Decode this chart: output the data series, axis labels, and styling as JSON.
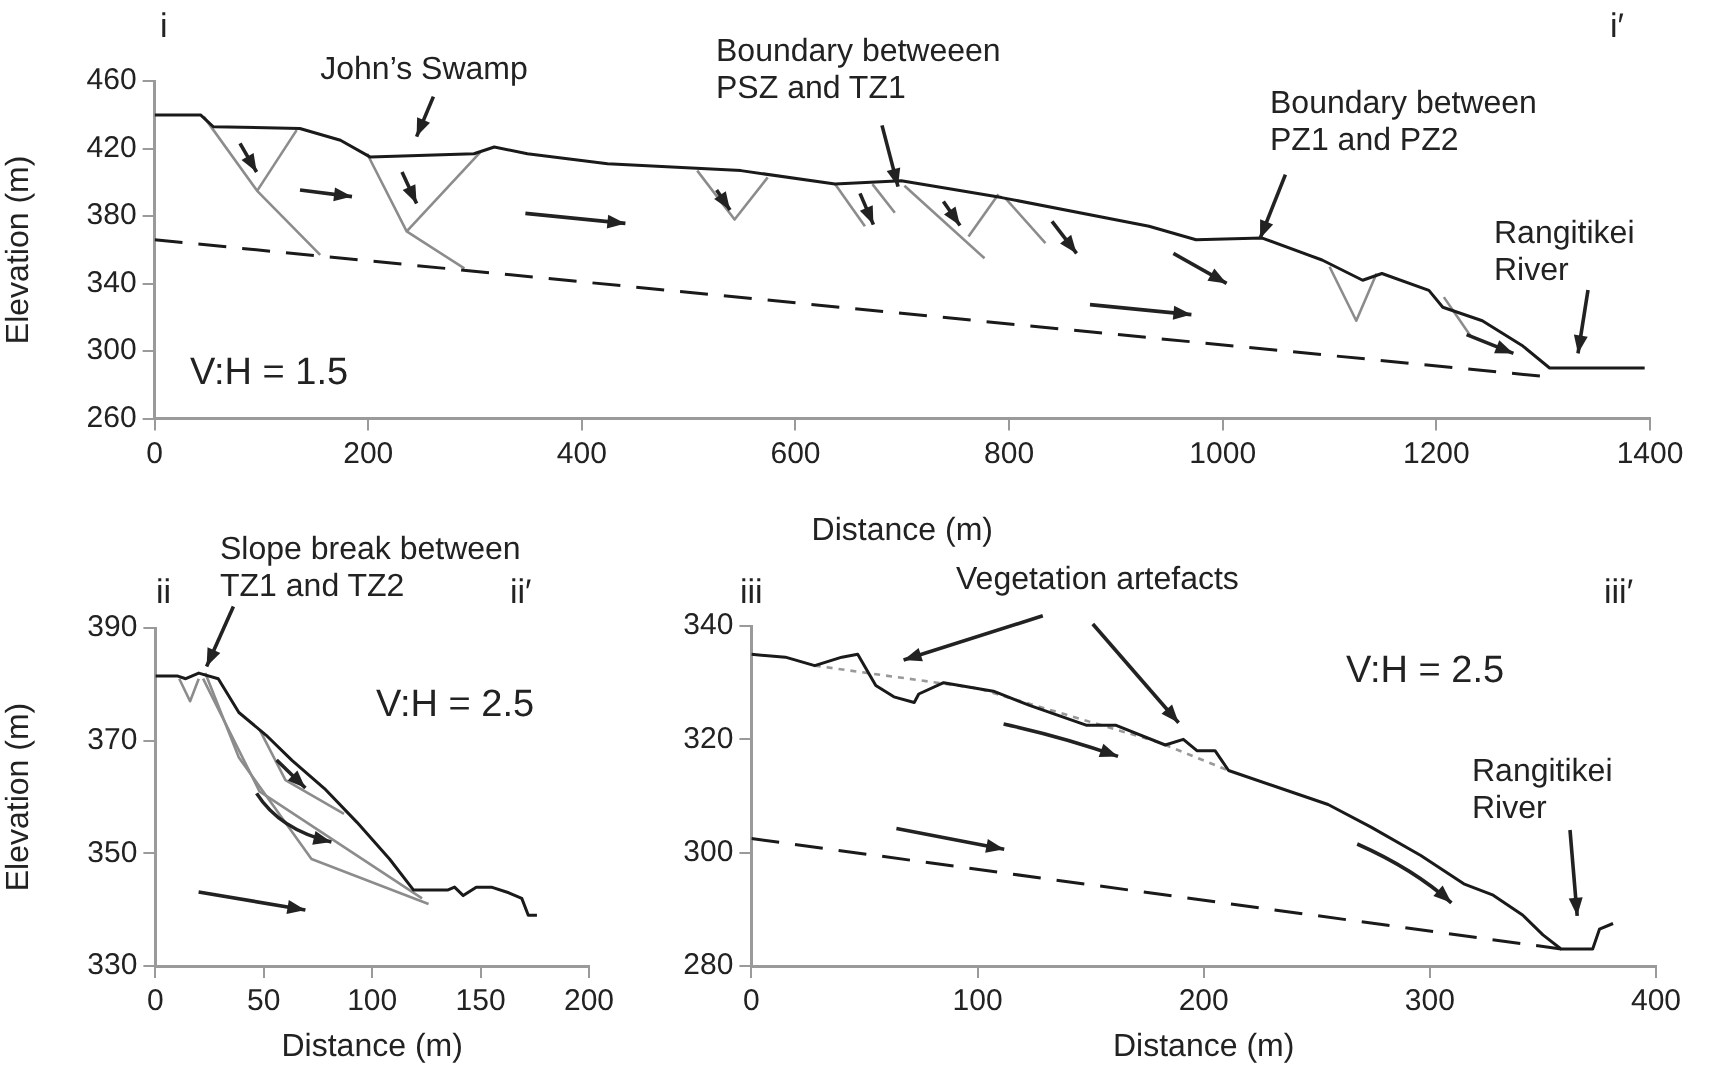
{
  "chart_data": [
    {
      "type": "line",
      "xlabel": "Distance (m)",
      "ylabel": "Elevation (m)",
      "xlim": [
        0,
        1400
      ],
      "ylim": [
        260,
        460
      ],
      "xticks": [
        0,
        200,
        400,
        600,
        800,
        1000,
        1200,
        1400
      ],
      "yticks": [
        260,
        300,
        340,
        380,
        420,
        460
      ],
      "annotations": [
        "John’s Swamp",
        "Boundary betweeen PSZ and TZ1",
        "Boundary between PZ1 and PZ2",
        "Rangitikei River",
        "i",
        "i′",
        "V:H = 1.5"
      ],
      "series": [
        {
          "color": "#1a1a1a",
          "line_style": "solid",
          "x": [
            0,
            43,
            55,
            136,
            174,
            202,
            299,
            318,
            349,
            424,
            549,
            637,
            699,
            737,
            793,
            931,
            975,
            1037,
            1093,
            1131,
            1149,
            1193,
            1206,
            1243,
            1281,
            1306,
            1362,
            1395
          ],
          "values": [
            440,
            440,
            433,
            432,
            425,
            415,
            417,
            421,
            417,
            411,
            407,
            399,
            401,
            397,
            391,
            374,
            366,
            367,
            354,
            342,
            346,
            336,
            326,
            318,
            303,
            290,
            290,
            290
          ]
        },
        {
          "color": "#1a1a1a",
          "line_style": "dashed",
          "x": [
            0,
            1300
          ],
          "values": [
            366,
            285
          ]
        },
        {
          "color": "#8c8c8c",
          "line_style": "solid",
          "x": [
            46,
            96,
            155
          ],
          "values": [
            439,
            395,
            357
          ]
        },
        {
          "color": "#8c8c8c",
          "line_style": "solid",
          "x": [
            96,
            133
          ],
          "values": [
            395,
            431
          ]
        },
        {
          "color": "#8c8c8c",
          "line_style": "solid",
          "x": [
            199,
            236,
            290
          ],
          "values": [
            417,
            371,
            349
          ]
        },
        {
          "color": "#8c8c8c",
          "line_style": "solid",
          "x": [
            236,
            305
          ],
          "values": [
            371,
            418
          ]
        },
        {
          "color": "#8c8c8c",
          "line_style": "solid",
          "x": [
            508,
            543,
            574
          ],
          "values": [
            407,
            378,
            403
          ]
        },
        {
          "color": "#8c8c8c",
          "line_style": "solid",
          "x": [
            637,
            665
          ],
          "values": [
            399,
            374
          ]
        },
        {
          "color": "#8c8c8c",
          "line_style": "solid",
          "x": [
            672,
            693
          ],
          "values": [
            399,
            382
          ]
        },
        {
          "color": "#8c8c8c",
          "line_style": "solid",
          "x": [
            702,
            777
          ],
          "values": [
            398,
            355
          ]
        },
        {
          "color": "#8c8c8c",
          "line_style": "solid",
          "x": [
            762,
            790
          ],
          "values": [
            368,
            393
          ]
        },
        {
          "color": "#8c8c8c",
          "line_style": "solid",
          "x": [
            796,
            834
          ],
          "values": [
            391,
            364
          ]
        },
        {
          "color": "#8c8c8c",
          "line_style": "solid",
          "x": [
            1100,
            1125,
            1144
          ],
          "values": [
            350,
            318,
            346
          ]
        },
        {
          "color": "#8c8c8c",
          "line_style": "solid",
          "x": [
            1207,
            1232
          ],
          "values": [
            332,
            309
          ]
        }
      ]
    },
    {
      "type": "line",
      "xlabel": "Distance (m)",
      "ylabel": "Elevation (m)",
      "xlim": [
        0,
        200
      ],
      "ylim": [
        330,
        390
      ],
      "xticks": [
        0,
        50,
        100,
        150,
        200
      ],
      "yticks": [
        330,
        350,
        370,
        390
      ],
      "annotations": [
        "Slope break between TZ1 and TZ2",
        "ii",
        "ii′",
        "V:H = 2.5"
      ],
      "series": [
        {
          "color": "#1a1a1a",
          "line_style": "solid",
          "x": [
            0,
            10,
            14,
            20,
            29,
            38.5,
            51,
            63,
            78,
            93,
            108,
            119,
            135,
            138,
            142,
            148,
            155,
            163,
            169,
            172,
            176
          ],
          "values": [
            381.5,
            381.5,
            381,
            382,
            381,
            375,
            371,
            366.5,
            361.5,
            355.5,
            349,
            343.5,
            343.5,
            344,
            342.5,
            344,
            344,
            343,
            342,
            339,
            339
          ]
        },
        {
          "color": "#8c8c8c",
          "line_style": "solid",
          "x": [
            23,
            38.5,
            72,
            126
          ],
          "values": [
            382,
            367,
            349,
            341
          ]
        },
        {
          "color": "#8c8c8c",
          "line_style": "solid",
          "x": [
            22,
            48,
            123
          ],
          "values": [
            381,
            361,
            342
          ]
        },
        {
          "color": "#8c8c8c",
          "line_style": "solid",
          "x": [
            48,
            60,
            87
          ],
          "values": [
            372,
            363,
            357
          ]
        },
        {
          "color": "#8c8c8c",
          "line_style": "solid",
          "x": [
            11,
            16,
            20
          ],
          "values": [
            381,
            377,
            381
          ]
        }
      ]
    },
    {
      "type": "line",
      "xlabel": "Distance (m)",
      "xlim": [
        0,
        400
      ],
      "ylim": [
        280,
        340
      ],
      "xticks": [
        0,
        100,
        200,
        300,
        400
      ],
      "yticks": [
        280,
        300,
        320,
        340
      ],
      "annotations": [
        "Vegetation artefacts",
        "Rangitikei River",
        "iii",
        "iii′",
        "V:H = 2.5"
      ],
      "series": [
        {
          "color": "#1a1a1a",
          "line_style": "solid",
          "x": [
            0,
            15,
            28,
            40,
            47,
            55,
            63,
            72,
            74,
            85,
            107,
            123,
            148,
            161,
            183,
            191,
            197,
            205,
            211,
            233,
            255,
            274,
            296,
            315,
            328,
            341,
            350,
            358,
            372,
            375,
            381
          ],
          "values": [
            335,
            334.5,
            333,
            334.5,
            335,
            329.5,
            327.5,
            326.5,
            328,
            330,
            328.5,
            326,
            322.5,
            322.5,
            319,
            320,
            318,
            318,
            314.5,
            311.5,
            308.5,
            304.5,
            299.5,
            294.5,
            292.5,
            289,
            285.5,
            283,
            283,
            286.5,
            287.5
          ]
        },
        {
          "color": "#999999",
          "line_style": "dotted",
          "x": [
            28,
            100,
            180,
            211
          ],
          "values": [
            333,
            329,
            319.5,
            314.5
          ]
        },
        {
          "color": "#1a1a1a",
          "line_style": "dashed",
          "x": [
            0,
            358
          ],
          "values": [
            302.5,
            283
          ]
        }
      ]
    }
  ]
}
